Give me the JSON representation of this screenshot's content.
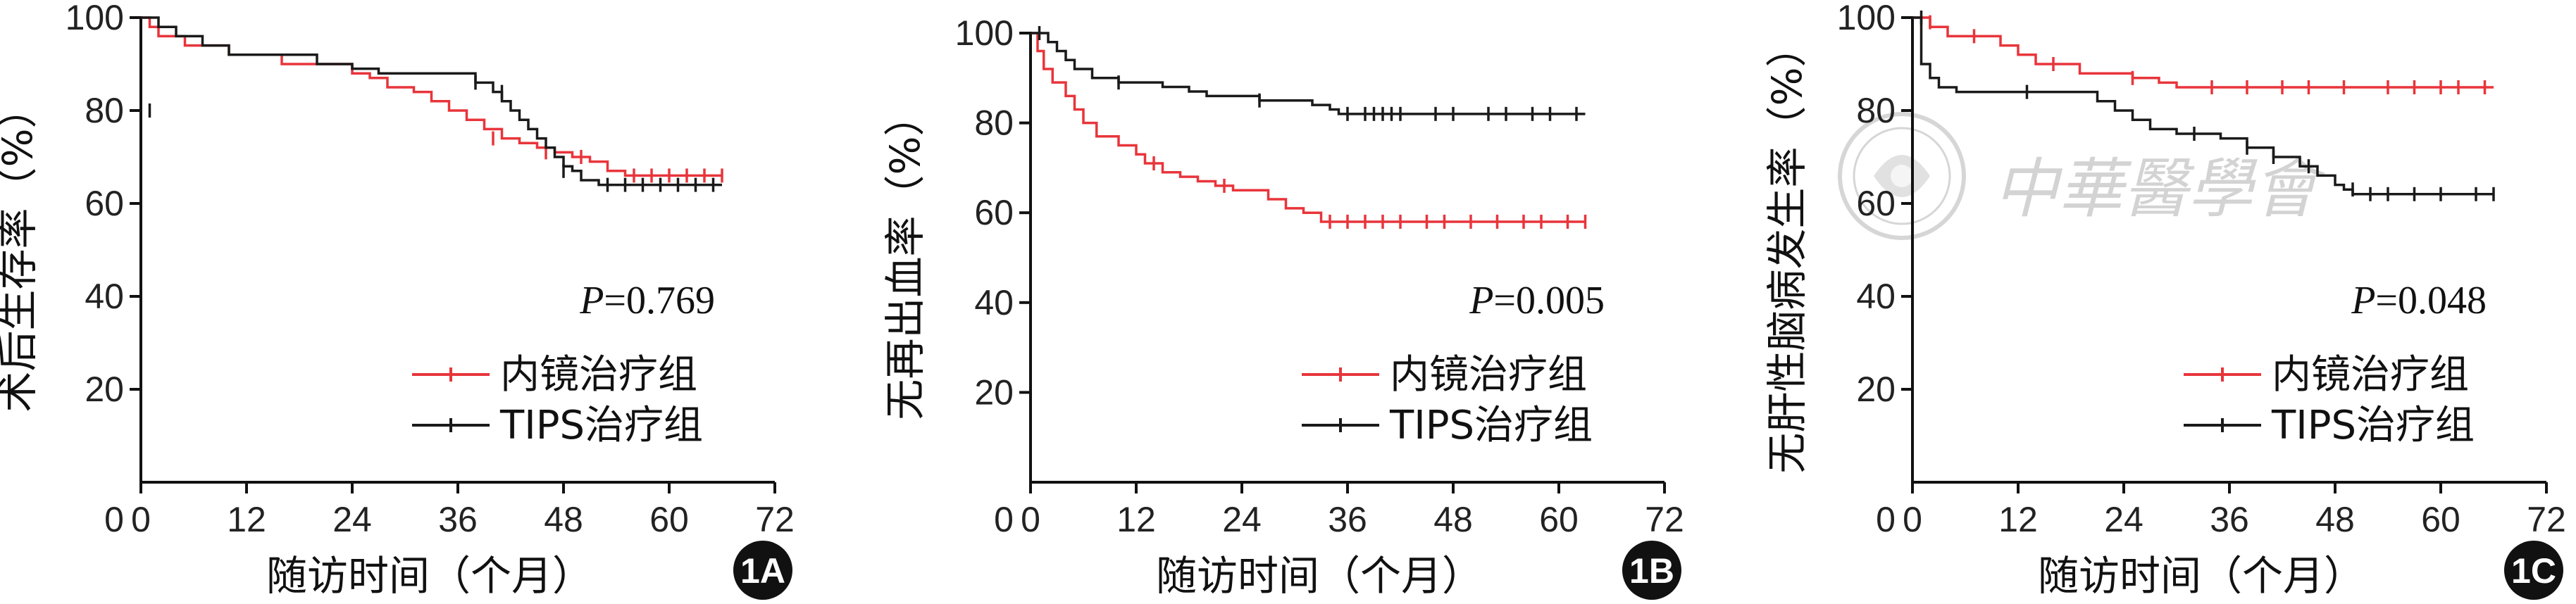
{
  "colors": {
    "endoscopic": "#e8353b",
    "tips": "#1a1a1a",
    "badge": "#111111"
  },
  "watermark": {
    "seal_text": "中华医学会",
    "script_text": "中華醫學會"
  },
  "chart_data": [
    {
      "panel_label": "1A",
      "type": "line",
      "ylabel": "术后生存率（%）",
      "xlabel": "随访时间（个月）",
      "xlim": [
        0,
        72
      ],
      "ylim": [
        0,
        100
      ],
      "x_ticks": [
        0,
        12,
        24,
        36,
        48,
        60,
        72
      ],
      "y_ticks": [
        20,
        40,
        60,
        80,
        100
      ],
      "p_prefix": "P",
      "p_value": "=0.769",
      "legend_position": "bottom-right",
      "series": [
        {
          "name": "内镜治疗组",
          "color_key": "endoscopic",
          "steps": [
            [
              0,
              100
            ],
            [
              1,
              98
            ],
            [
              2,
              96
            ],
            [
              5,
              94
            ],
            [
              10,
              92
            ],
            [
              16,
              90
            ],
            [
              24,
              88
            ],
            [
              26,
              87
            ],
            [
              28,
              85
            ],
            [
              31,
              84
            ],
            [
              33,
              82
            ],
            [
              35,
              80
            ],
            [
              37,
              78
            ],
            [
              39,
              76
            ],
            [
              41,
              74
            ],
            [
              43,
              73
            ],
            [
              45,
              72
            ],
            [
              47,
              71
            ],
            [
              49,
              70
            ],
            [
              51,
              69
            ],
            [
              53,
              67
            ],
            [
              55,
              66
            ],
            [
              66,
              66
            ]
          ],
          "censored": [
            [
              40,
              74
            ],
            [
              46,
              71
            ],
            [
              50,
              70
            ],
            [
              56,
              66
            ],
            [
              58,
              66
            ],
            [
              60,
              66
            ],
            [
              62,
              66
            ],
            [
              64,
              66
            ],
            [
              66,
              66
            ]
          ]
        },
        {
          "name": "TIPS治疗组",
          "color_key": "tips",
          "steps": [
            [
              0,
              100
            ],
            [
              2,
              98
            ],
            [
              4,
              96
            ],
            [
              7,
              94
            ],
            [
              10,
              92
            ],
            [
              20,
              90
            ],
            [
              24,
              89
            ],
            [
              27,
              88
            ],
            [
              36,
              88
            ],
            [
              38,
              86
            ],
            [
              40,
              84
            ],
            [
              41,
              82
            ],
            [
              42,
              80
            ],
            [
              43,
              78
            ],
            [
              44,
              76
            ],
            [
              45,
              74
            ],
            [
              46,
              72
            ],
            [
              47,
              70
            ],
            [
              48,
              68
            ],
            [
              49,
              67
            ],
            [
              50,
              65
            ],
            [
              52,
              64
            ],
            [
              66,
              64
            ]
          ],
          "censored": [
            [
              1,
              80
            ],
            [
              38,
              86
            ],
            [
              41,
              84
            ],
            [
              48,
              67
            ],
            [
              53,
              64
            ],
            [
              55,
              64
            ],
            [
              57,
              64
            ],
            [
              59,
              64
            ],
            [
              61,
              64
            ],
            [
              63,
              64
            ],
            [
              65,
              64
            ]
          ]
        }
      ]
    },
    {
      "panel_label": "1B",
      "type": "line",
      "ylabel": "无再出血率（%）",
      "xlabel": "随访时间（个月）",
      "xlim": [
        0,
        72
      ],
      "ylim": [
        0,
        100
      ],
      "x_ticks": [
        0,
        12,
        24,
        36,
        48,
        60,
        72
      ],
      "y_ticks": [
        20,
        40,
        60,
        80,
        100
      ],
      "p_prefix": "P",
      "p_value": "=0.005",
      "legend_position": "bottom-right",
      "series": [
        {
          "name": "内镜治疗组",
          "color_key": "endoscopic",
          "steps": [
            [
              0,
              100
            ],
            [
              0.8,
              96
            ],
            [
              1.5,
              92
            ],
            [
              2.5,
              89
            ],
            [
              4,
              86
            ],
            [
              5,
              83
            ],
            [
              6,
              80
            ],
            [
              7.5,
              77
            ],
            [
              10,
              75
            ],
            [
              12,
              73
            ],
            [
              13,
              71
            ],
            [
              15,
              69
            ],
            [
              17,
              68
            ],
            [
              19,
              67
            ],
            [
              21,
              66
            ],
            [
              23,
              65
            ],
            [
              27,
              63
            ],
            [
              29,
              61
            ],
            [
              31,
              60
            ],
            [
              33,
              58
            ],
            [
              63,
              58
            ]
          ],
          "censored": [
            [
              14,
              71
            ],
            [
              22,
              66
            ],
            [
              34,
              58
            ],
            [
              36,
              58
            ],
            [
              38,
              58
            ],
            [
              40,
              58
            ],
            [
              42,
              58
            ],
            [
              45,
              58
            ],
            [
              47,
              58
            ],
            [
              50,
              58
            ],
            [
              53,
              58
            ],
            [
              56,
              58
            ],
            [
              58,
              58
            ],
            [
              61,
              58
            ],
            [
              63,
              58
            ]
          ]
        },
        {
          "name": "TIPS治疗组",
          "color_key": "tips",
          "steps": [
            [
              0,
              100
            ],
            [
              2,
              98
            ],
            [
              3,
              96
            ],
            [
              4,
              94
            ],
            [
              5,
              92
            ],
            [
              7,
              90
            ],
            [
              10,
              89
            ],
            [
              15,
              88
            ],
            [
              18,
              87
            ],
            [
              20,
              86
            ],
            [
              26,
              85
            ],
            [
              32,
              84
            ],
            [
              34,
              83
            ],
            [
              35,
              82
            ],
            [
              63,
              82
            ]
          ],
          "censored": [
            [
              1,
              100
            ],
            [
              10,
              89
            ],
            [
              26,
              85
            ],
            [
              36,
              82
            ],
            [
              38,
              82
            ],
            [
              39,
              82
            ],
            [
              40,
              82
            ],
            [
              41,
              82
            ],
            [
              42,
              82
            ],
            [
              46,
              82
            ],
            [
              48,
              82
            ],
            [
              52,
              82
            ],
            [
              54,
              82
            ],
            [
              57,
              82
            ],
            [
              59,
              82
            ],
            [
              62,
              82
            ]
          ]
        }
      ]
    },
    {
      "panel_label": "1C",
      "type": "line",
      "ylabel": "无肝性脑病发生率（%）",
      "xlabel": "随访时间（个月）",
      "xlim": [
        0,
        72
      ],
      "ylim": [
        0,
        100
      ],
      "x_ticks": [
        0,
        12,
        24,
        36,
        48,
        60,
        72
      ],
      "y_ticks": [
        20,
        40,
        60,
        80,
        100
      ],
      "p_prefix": "P",
      "p_value": "=0.048",
      "legend_position": "bottom-right",
      "series": [
        {
          "name": "内镜治疗组",
          "color_key": "endoscopic",
          "steps": [
            [
              0,
              100
            ],
            [
              2,
              98
            ],
            [
              4,
              96
            ],
            [
              10,
              94
            ],
            [
              12,
              92
            ],
            [
              14,
              90
            ],
            [
              19,
              88
            ],
            [
              25,
              87
            ],
            [
              28,
              86
            ],
            [
              30,
              85
            ],
            [
              66,
              85
            ]
          ],
          "censored": [
            [
              2,
              99
            ],
            [
              7,
              96
            ],
            [
              16,
              90
            ],
            [
              25,
              87
            ],
            [
              34,
              85
            ],
            [
              38,
              85
            ],
            [
              42,
              85
            ],
            [
              45,
              85
            ],
            [
              49,
              85
            ],
            [
              54,
              85
            ],
            [
              57,
              85
            ],
            [
              60,
              85
            ],
            [
              62,
              85
            ],
            [
              65,
              85
            ]
          ]
        },
        {
          "name": "TIPS治疗组",
          "color_key": "tips",
          "steps": [
            [
              0,
              100
            ],
            [
              1,
              90
            ],
            [
              2,
              87
            ],
            [
              3,
              85
            ],
            [
              5,
              84
            ],
            [
              21,
              82
            ],
            [
              23,
              80
            ],
            [
              25,
              78
            ],
            [
              27,
              76
            ],
            [
              30,
              75
            ],
            [
              35,
              74
            ],
            [
              38,
              72
            ],
            [
              41,
              70
            ],
            [
              44,
              68
            ],
            [
              46,
              66
            ],
            [
              48,
              64
            ],
            [
              49,
              63
            ],
            [
              50,
              62
            ],
            [
              66,
              62
            ]
          ],
          "censored": [
            [
              1,
              100
            ],
            [
              13,
              84
            ],
            [
              32,
              75
            ],
            [
              38,
              72
            ],
            [
              41,
              70
            ],
            [
              45,
              68
            ],
            [
              50,
              63
            ],
            [
              52,
              62
            ],
            [
              54,
              62
            ],
            [
              57,
              62
            ],
            [
              60,
              62
            ],
            [
              64,
              62
            ],
            [
              66,
              62
            ]
          ]
        }
      ]
    }
  ]
}
